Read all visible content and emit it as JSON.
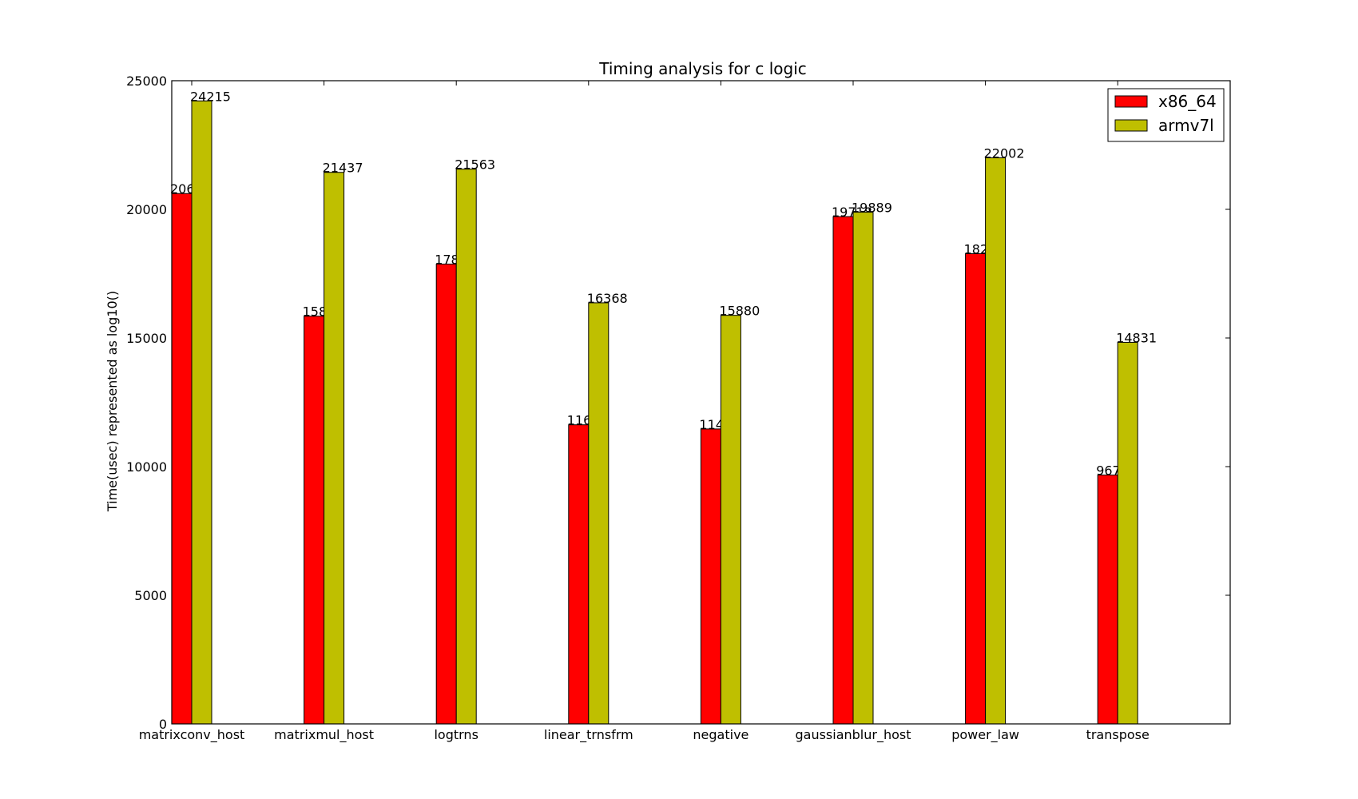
{
  "chart_data": {
    "type": "bar",
    "title": "Timing analysis for c logic",
    "xlabel": "",
    "ylabel": "Time(usec) represented as log10()",
    "ylim": [
      0,
      25000
    ],
    "yticks": [
      0,
      5000,
      10000,
      15000,
      20000,
      25000
    ],
    "categories": [
      "matrixconv_host",
      "matrixmul_host",
      "logtrns",
      "linear_trnsfrm",
      "negative",
      "gaussianblur_host",
      "power_law",
      "transpose"
    ],
    "series": [
      {
        "name": "x86_64",
        "color": "#ff0000",
        "values": [
          20614,
          15847,
          17872,
          11625,
          11463,
          19718,
          18276,
          9674
        ]
      },
      {
        "name": "armv7l",
        "color": "#bfbf00",
        "values": [
          24215,
          21437,
          21563,
          16368,
          15880,
          19889,
          22002,
          14831
        ]
      }
    ],
    "legend_position": "top-right",
    "grid": false
  }
}
